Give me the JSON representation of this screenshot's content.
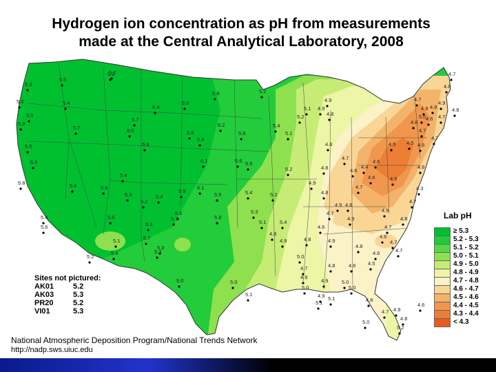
{
  "title_line1": "Hydrogen ion concentration as pH from measurements",
  "title_line2": "made at the Central Analytical Laboratory, 2008",
  "legend": {
    "title": "Lab pH",
    "items": [
      {
        "label": "≥ 5.3",
        "color": "#00c030"
      },
      {
        "label": "5.2 - 5.3",
        "color": "#22cc3a"
      },
      {
        "label": "5.1 - 5.2",
        "color": "#55d844"
      },
      {
        "label": "5.0 - 5.1",
        "color": "#8ee04e"
      },
      {
        "label": "4.9 - 5.0",
        "color": "#c6ec76"
      },
      {
        "label": "4.8 - 4.9",
        "color": "#edf5a6"
      },
      {
        "label": "4.7 - 4.8",
        "color": "#fbf2c8"
      },
      {
        "label": "4.6 - 4.7",
        "color": "#f9d695"
      },
      {
        "label": "4.5 - 4.6",
        "color": "#f4b36a"
      },
      {
        "label": "4.4 - 4.5",
        "color": "#f0974d"
      },
      {
        "label": "4.3 - 4.4",
        "color": "#ec7e35"
      },
      {
        "label": "< 4.3",
        "color": "#e85c22"
      }
    ]
  },
  "sites_not_pictured": {
    "heading": "Sites not pictured:",
    "rows": [
      {
        "site": "AK01",
        "value": "5.2"
      },
      {
        "site": "AK03",
        "value": "5.3"
      },
      {
        "site": "PR20",
        "value": "5.2"
      },
      {
        "site": "VI01",
        "value": "5.3"
      }
    ]
  },
  "credit": "National Atmospheric Deposition Program/National Trends Network",
  "url": "http://nadp.sws.uiuc.edu",
  "sites": [
    {
      "v": "5.3"
    },
    {
      "v": "5.5"
    },
    {
      "v": "5.2"
    },
    {
      "v": "5.3"
    },
    {
      "v": "5.5"
    },
    {
      "v": "5.4"
    },
    {
      "v": "5.3"
    },
    {
      "v": "5.7"
    },
    {
      "v": "5.5"
    },
    {
      "v": "5.5"
    },
    {
      "v": "5.8"
    },
    {
      "v": "5.6"
    },
    {
      "v": "6.4"
    },
    {
      "v": "5.7"
    },
    {
      "v": "6.0"
    },
    {
      "v": "5.8"
    },
    {
      "v": "5.6"
    },
    {
      "v": "6.2"
    },
    {
      "v": "5.2"
    },
    {
      "v": "5.8"
    },
    {
      "v": "5.6"
    },
    {
      "v": "5.4"
    },
    {
      "v": "5.9"
    },
    {
      "v": "5.6"
    },
    {
      "v": "6.1"
    },
    {
      "v": "5.6"
    },
    {
      "v": "5.5"
    },
    {
      "v": "5.4"
    },
    {
      "v": "5.3"
    },
    {
      "v": "5.6"
    },
    {
      "v": "5.4"
    },
    {
      "v": "5.2"
    },
    {
      "v": "5.9"
    },
    {
      "v": "6.1"
    },
    {
      "v": "5.5"
    },
    {
      "v": "5.4"
    },
    {
      "v": "5.6"
    },
    {
      "v": "5.8"
    },
    {
      "v": "5.7"
    },
    {
      "v": "5.6"
    },
    {
      "v": "5.4"
    },
    {
      "v": "5.6"
    },
    {
      "v": "5.3"
    },
    {
      "v": "5.1"
    },
    {
      "v": "5.3"
    },
    {
      "v": "5.4"
    },
    {
      "v": "5.3"
    },
    {
      "v": "5.2"
    },
    {
      "v": "5.0"
    },
    {
      "v": "5.0"
    },
    {
      "v": "5.1"
    },
    {
      "v": "5.2"
    },
    {
      "v": "5.4"
    },
    {
      "v": "5.3"
    },
    {
      "v": "5.7"
    },
    {
      "v": "5.1"
    },
    {
      "v": "5.2"
    },
    {
      "v": "5.1"
    },
    {
      "v": "5.2"
    },
    {
      "v": "4.9"
    },
    {
      "v": "4.9"
    },
    {
      "v": "4.8"
    },
    {
      "v": "5.1"
    },
    {
      "v": "4.8"
    },
    {
      "v": "5.2"
    },
    {
      "v": "4.8"
    },
    {
      "v": "4.9"
    },
    {
      "v": "4.8"
    },
    {
      "v": "4.7"
    },
    {
      "v": "4.6"
    },
    {
      "v": "4.4"
    },
    {
      "v": "4.6"
    },
    {
      "v": "4.5"
    },
    {
      "v": "4.5"
    },
    {
      "v": "4.6"
    },
    {
      "v": "4.7"
    },
    {
      "v": "4.7"
    },
    {
      "v": "4.8"
    },
    {
      "v": "4.6"
    },
    {
      "v": "4.7"
    },
    {
      "v": "4.8"
    },
    {
      "v": "4.7"
    },
    {
      "v": "4.6"
    },
    {
      "v": "4.5"
    },
    {
      "v": "4.6"
    },
    {
      "v": "4.7"
    },
    {
      "v": "4.3"
    },
    {
      "v": "4.7"
    },
    {
      "v": "4.8"
    },
    {
      "v": "4.9"
    },
    {
      "v": "4.7"
    },
    {
      "v": "4.9"
    },
    {
      "v": "4.9"
    },
    {
      "v": "4.8"
    },
    {
      "v": "4.7"
    },
    {
      "v": "4.6"
    },
    {
      "v": "4.7"
    },
    {
      "v": "4.7"
    },
    {
      "v": "4.6"
    },
    {
      "v": "4.5"
    },
    {
      "v": "4.6"
    },
    {
      "v": "4.8"
    },
    {
      "v": "4.7"
    },
    {
      "v": "4.6"
    },
    {
      "v": "4.8"
    },
    {
      "v": "4.9"
    },
    {
      "v": "4.8"
    },
    {
      "v": "4.9"
    },
    {
      "v": "5.0"
    },
    {
      "v": "4.8"
    },
    {
      "v": "4.9"
    },
    {
      "v": "4.9"
    },
    {
      "v": "5.0"
    },
    {
      "v": "5.0"
    },
    {
      "v": "4.8"
    },
    {
      "v": "4.9"
    },
    {
      "v": "5.0"
    },
    {
      "v": "4.7"
    },
    {
      "v": "4.8"
    },
    {
      "v": "4.6"
    },
    {
      "v": "4.7"
    },
    {
      "v": "4.8"
    },
    {
      "v": "4.9"
    },
    {
      "v": "4.8"
    },
    {
      "v": "4.9"
    },
    {
      "v": "5.0"
    },
    {
      "v": "5.2"
    },
    {
      "v": "5.0"
    },
    {
      "v": "4.9"
    },
    {
      "v": "5.1"
    },
    {
      "v": "5.1"
    }
  ]
}
